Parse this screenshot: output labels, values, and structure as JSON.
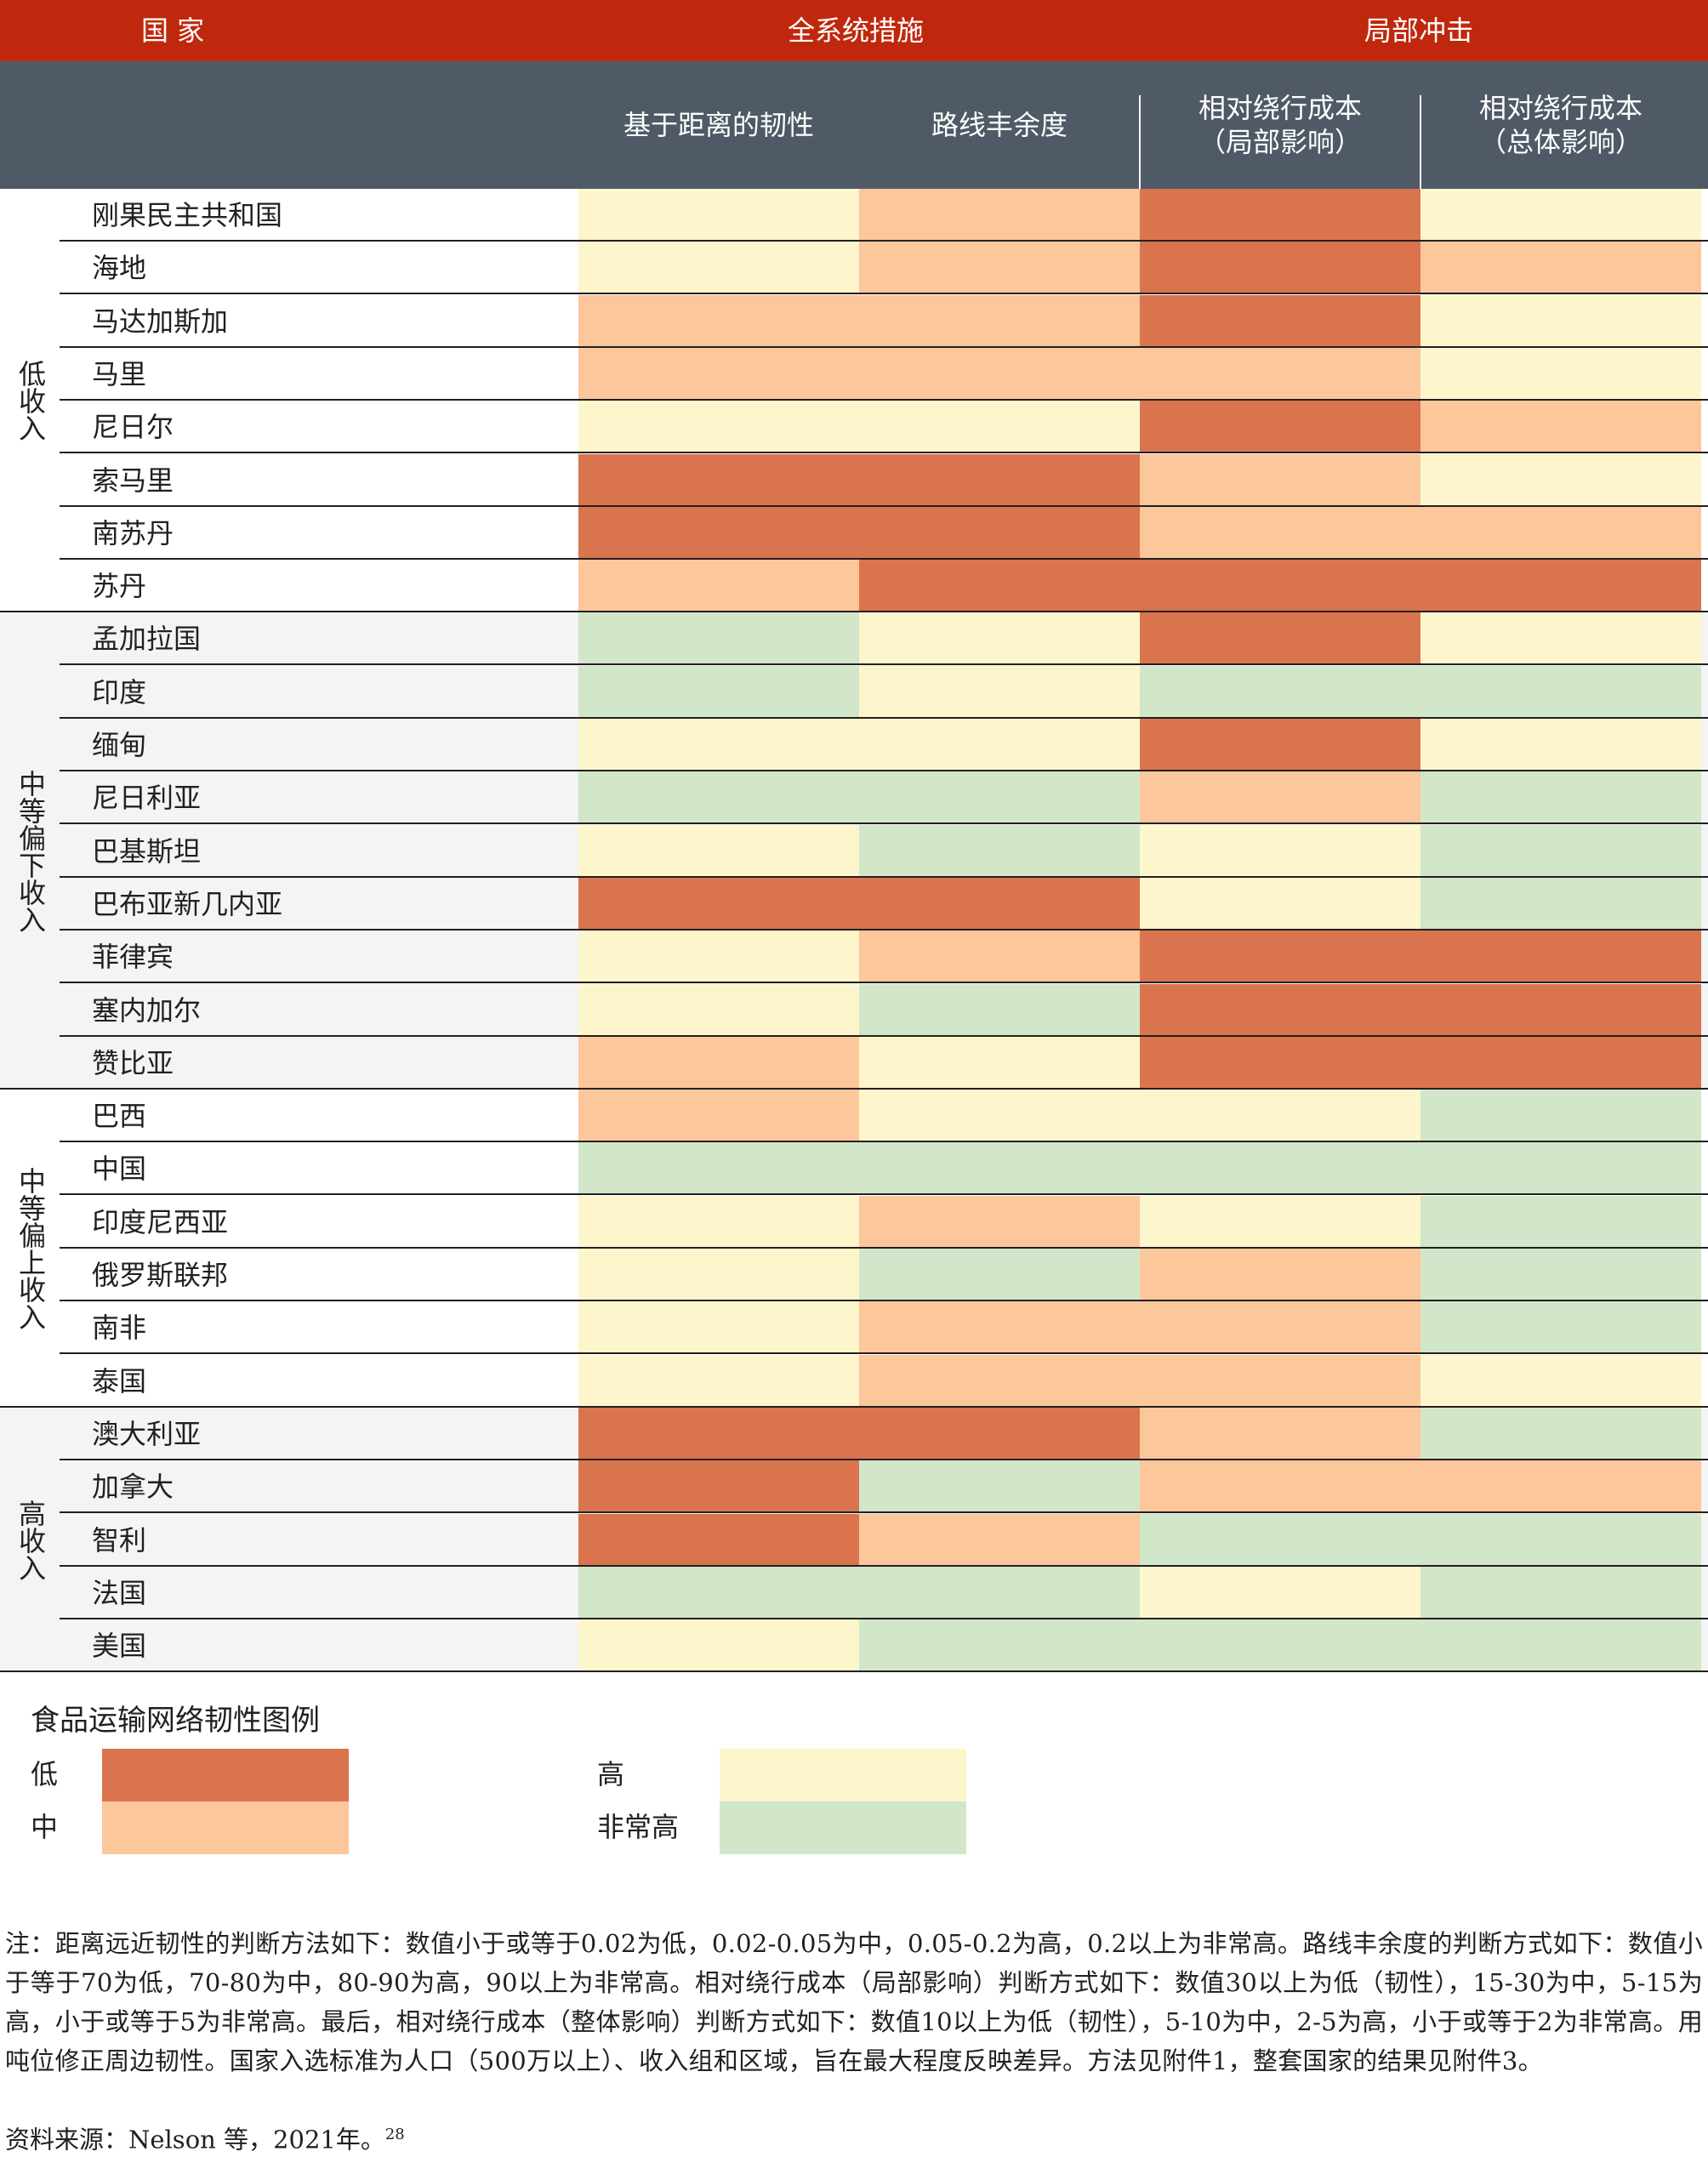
{
  "header": {
    "country_label": "国 家",
    "group1_label": "全系统措施",
    "group2_label": "局部冲击"
  },
  "columns": [
    {
      "lines": [
        "基于距离的韧性"
      ]
    },
    {
      "lines": [
        "路线丰余度"
      ]
    },
    {
      "lines": [
        "相对绕行成本",
        "（局部影响）"
      ]
    },
    {
      "lines": [
        "相对绕行成本",
        "（总体影响）"
      ]
    }
  ],
  "colors": {
    "header_red": "#c0280d",
    "header_slate": "#4f5a66",
    "group_shade": "#f4f4f4",
    "low": "#d9744e",
    "medium": "#fbc79b",
    "high": "#fdf6cc",
    "very_high": "#d2e6c9"
  },
  "groups": [
    {
      "label": "低收入",
      "shaded": false,
      "rows": [
        {
          "name": "刚果民主共和国",
          "values": [
            "high",
            "medium",
            "low",
            "high"
          ]
        },
        {
          "name": "海地",
          "values": [
            "high",
            "medium",
            "low",
            "medium"
          ]
        },
        {
          "name": "马达加斯加",
          "values": [
            "medium",
            "medium",
            "low",
            "high"
          ]
        },
        {
          "name": "马里",
          "values": [
            "medium",
            "medium",
            "medium",
            "high"
          ]
        },
        {
          "name": "尼日尔",
          "values": [
            "high",
            "high",
            "low",
            "medium"
          ]
        },
        {
          "name": "索马里",
          "values": [
            "low",
            "low",
            "medium",
            "high"
          ]
        },
        {
          "name": "南苏丹",
          "values": [
            "low",
            "low",
            "medium",
            "medium"
          ]
        },
        {
          "name": "苏丹",
          "values": [
            "medium",
            "low",
            "low",
            "low"
          ]
        }
      ]
    },
    {
      "label": "中等偏下收入",
      "shaded": true,
      "rows": [
        {
          "name": "孟加拉国",
          "values": [
            "very_high",
            "high",
            "low",
            "high"
          ]
        },
        {
          "name": "印度",
          "values": [
            "very_high",
            "high",
            "very_high",
            "very_high"
          ]
        },
        {
          "name": "缅甸",
          "values": [
            "high",
            "high",
            "low",
            "high"
          ]
        },
        {
          "name": "尼日利亚",
          "values": [
            "very_high",
            "very_high",
            "medium",
            "very_high"
          ]
        },
        {
          "name": "巴基斯坦",
          "values": [
            "high",
            "very_high",
            "high",
            "very_high"
          ]
        },
        {
          "name": "巴布亚新几内亚",
          "values": [
            "low",
            "low",
            "high",
            "very_high"
          ]
        },
        {
          "name": "菲律宾",
          "values": [
            "high",
            "medium",
            "low",
            "low"
          ]
        },
        {
          "name": "塞内加尔",
          "values": [
            "high",
            "very_high",
            "low",
            "low"
          ]
        },
        {
          "name": "赞比亚",
          "values": [
            "medium",
            "high",
            "low",
            "low"
          ]
        }
      ]
    },
    {
      "label": "中等偏上收入",
      "shaded": false,
      "rows": [
        {
          "name": "巴西",
          "values": [
            "medium",
            "high",
            "high",
            "very_high"
          ]
        },
        {
          "name": "中国",
          "values": [
            "very_high",
            "very_high",
            "very_high",
            "very_high"
          ]
        },
        {
          "name": "印度尼西亚",
          "values": [
            "high",
            "medium",
            "high",
            "very_high"
          ]
        },
        {
          "name": "俄罗斯联邦",
          "values": [
            "high",
            "very_high",
            "medium",
            "very_high"
          ]
        },
        {
          "name": "南非",
          "values": [
            "high",
            "medium",
            "medium",
            "very_high"
          ]
        },
        {
          "name": "泰国",
          "values": [
            "high",
            "medium",
            "medium",
            "high"
          ]
        }
      ]
    },
    {
      "label": "高收入",
      "shaded": true,
      "rows": [
        {
          "name": "澳大利亚",
          "values": [
            "low",
            "low",
            "medium",
            "very_high"
          ]
        },
        {
          "name": "加拿大",
          "values": [
            "low",
            "very_high",
            "medium",
            "medium"
          ]
        },
        {
          "name": "智利",
          "values": [
            "low",
            "medium",
            "very_high",
            "very_high"
          ]
        },
        {
          "name": "法国",
          "values": [
            "very_high",
            "very_high",
            "high",
            "very_high"
          ]
        },
        {
          "name": "美国",
          "values": [
            "high",
            "very_high",
            "very_high",
            "very_high"
          ]
        }
      ]
    }
  ],
  "legend": {
    "title": "食品运输网络韧性图例",
    "items": [
      {
        "label": "低",
        "level": "low"
      },
      {
        "label": "中",
        "level": "medium"
      },
      {
        "label": "高",
        "level": "high"
      },
      {
        "label": "非常高",
        "level": "very_high"
      }
    ]
  },
  "note": "注：距离远近韧性的判断方法如下：数值小于或等于0.02为低，0.02-0.05为中，0.05-0.2为高，0.2以上为非常高。路线丰余度的判断方式如下：数值小于等于70为低，70-80为中，80-90为高，90以上为非常高。相对绕行成本（局部影响）判断方式如下：数值30以上为低（韧性），15-30为中，5-15为高，小于或等于5为非常高。最后，相对绕行成本（整体影响）判断方式如下：数值10以上为低（韧性），5-10为中，2-5为高，小于或等于2为非常高。用吨位修正周边韧性。国家入选标准为人口（500万以上）、收入组和区域，旨在最大程度反映差异。方法见附件1，整套国家的结果见附件3。",
  "source": "资料来源：Nelson 等，2021年。",
  "source_ref": "28"
}
